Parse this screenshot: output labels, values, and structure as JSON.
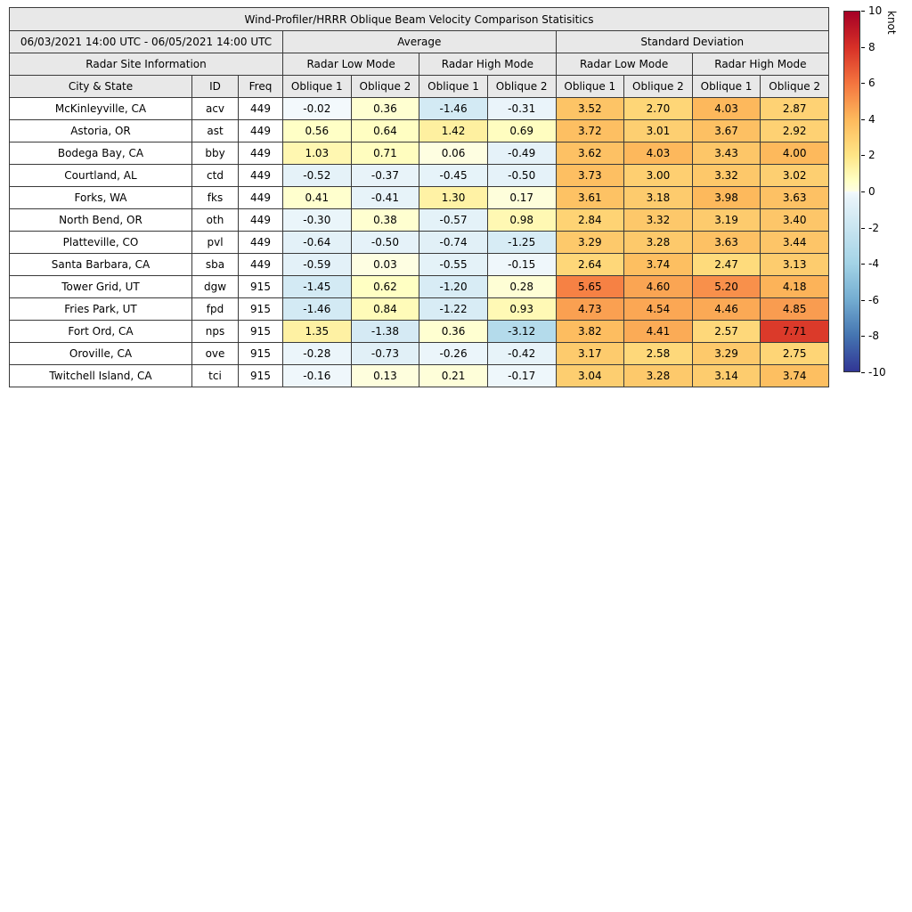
{
  "chart_data": {
    "type": "table",
    "title": "Wind-Profiler/HRRR Oblique Beam Velocity Comparison Statisitics",
    "header": {
      "date_range": "06/03/2021 14:00 UTC - 06/05/2021 14:00 UTC",
      "stat_groups": [
        "Average",
        "Standard Deviation"
      ],
      "site_info": "Radar Site Information",
      "mode_groups": [
        "Radar Low Mode",
        "Radar High Mode",
        "Radar Low Mode",
        "Radar High Mode"
      ],
      "columns": [
        "City & State",
        "ID",
        "Freq",
        "Oblique 1",
        "Oblique 2",
        "Oblique 1",
        "Oblique 2",
        "Oblique 1",
        "Oblique 2",
        "Oblique 1",
        "Oblique 2"
      ]
    },
    "rows": [
      {
        "city_state": "McKinleyville, CA",
        "id": "acv",
        "freq": "449",
        "values": [
          -0.02,
          0.36,
          -1.46,
          -0.31,
          3.52,
          2.7,
          4.03,
          2.87
        ]
      },
      {
        "city_state": "Astoria, OR",
        "id": "ast",
        "freq": "449",
        "values": [
          0.56,
          0.64,
          1.42,
          0.69,
          3.72,
          3.01,
          3.67,
          2.92
        ]
      },
      {
        "city_state": "Bodega Bay, CA",
        "id": "bby",
        "freq": "449",
        "values": [
          1.03,
          0.71,
          0.06,
          -0.49,
          3.62,
          4.03,
          3.43,
          4.0
        ]
      },
      {
        "city_state": "Courtland, AL",
        "id": "ctd",
        "freq": "449",
        "values": [
          -0.52,
          -0.37,
          -0.45,
          -0.5,
          3.73,
          3.0,
          3.32,
          3.02
        ]
      },
      {
        "city_state": "Forks, WA",
        "id": "fks",
        "freq": "449",
        "values": [
          0.41,
          -0.41,
          1.3,
          0.17,
          3.61,
          3.18,
          3.98,
          3.63
        ]
      },
      {
        "city_state": "North Bend, OR",
        "id": "oth",
        "freq": "449",
        "values": [
          -0.3,
          0.38,
          -0.57,
          0.98,
          2.84,
          3.32,
          3.19,
          3.4
        ]
      },
      {
        "city_state": "Platteville, CO",
        "id": "pvl",
        "freq": "449",
        "values": [
          -0.64,
          -0.5,
          -0.74,
          -1.25,
          3.29,
          3.28,
          3.63,
          3.44
        ]
      },
      {
        "city_state": "Santa Barbara, CA",
        "id": "sba",
        "freq": "449",
        "values": [
          -0.59,
          0.03,
          -0.55,
          -0.15,
          2.64,
          3.74,
          2.47,
          3.13
        ]
      },
      {
        "city_state": "Tower Grid, UT",
        "id": "dgw",
        "freq": "915",
        "values": [
          -1.45,
          0.62,
          -1.2,
          0.28,
          5.65,
          4.6,
          5.2,
          4.18
        ]
      },
      {
        "city_state": "Fries Park, UT",
        "id": "fpd",
        "freq": "915",
        "values": [
          -1.46,
          0.84,
          -1.22,
          0.93,
          4.73,
          4.54,
          4.46,
          4.85
        ]
      },
      {
        "city_state": "Fort Ord, CA",
        "id": "nps",
        "freq": "915",
        "values": [
          1.35,
          -1.38,
          0.36,
          -3.12,
          3.82,
          4.41,
          2.57,
          7.71
        ]
      },
      {
        "city_state": "Oroville, CA",
        "id": "ove",
        "freq": "915",
        "values": [
          -0.28,
          -0.73,
          -0.26,
          -0.42,
          3.17,
          2.58,
          3.29,
          2.75
        ]
      },
      {
        "city_state": "Twitchell Island, CA",
        "id": "tci",
        "freq": "915",
        "values": [
          -0.16,
          0.13,
          0.21,
          -0.17,
          3.04,
          3.28,
          3.14,
          3.74
        ]
      }
    ],
    "colorbar": {
      "label": "knot",
      "min": -10,
      "max": 10,
      "ticks": [
        10,
        8,
        6,
        4,
        2,
        0,
        -2,
        -4,
        -6,
        -8,
        -10
      ],
      "color_stops": [
        [
          0.0,
          "#313695"
        ],
        [
          0.1,
          "#4575b1"
        ],
        [
          0.2,
          "#74add1"
        ],
        [
          0.3,
          "#a3d3e6"
        ],
        [
          0.4,
          "#c9e5f1"
        ],
        [
          0.48,
          "#e7f3f9"
        ],
        [
          0.499,
          "#f3f9fc"
        ],
        [
          0.501,
          "#fefee3"
        ],
        [
          0.53,
          "#ffffc4"
        ],
        [
          0.6,
          "#fee586"
        ],
        [
          0.7,
          "#fdb95c"
        ],
        [
          0.8,
          "#f4753f"
        ],
        [
          0.9,
          "#d73027"
        ],
        [
          1.0,
          "#a50026"
        ]
      ]
    }
  }
}
